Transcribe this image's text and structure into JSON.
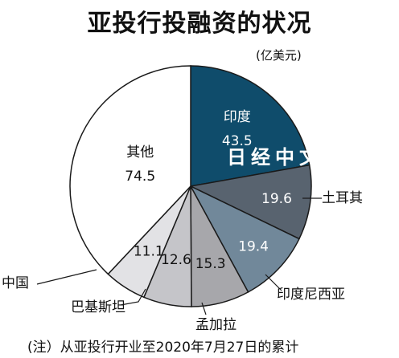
{
  "title": "亚投行投融资的状况",
  "watermark": "日经中文网",
  "note": "(注）从亚投行开业至2020年7月27日的累计",
  "chart_data": {
    "type": "pie",
    "unit": "(亿美元)",
    "slices": [
      {
        "label": "印度",
        "value": 43.5,
        "color": "#0f4c6b",
        "text_color": "#ffffff"
      },
      {
        "label": "土耳其",
        "value": 19.6,
        "color": "#58636f",
        "text_color": "#ffffff"
      },
      {
        "label": "印度尼西亚",
        "value": 19.4,
        "color": "#71889a",
        "text_color": "#ffffff"
      },
      {
        "label": "孟加拉",
        "value": 15.3,
        "color": "#a7a7ab",
        "text_color": "#111111"
      },
      {
        "label": "巴基斯坦",
        "value": 12.6,
        "color": "#c5c5c9",
        "text_color": "#111111"
      },
      {
        "label": "中国",
        "value": 11.1,
        "color": "#e2e2e5",
        "text_color": "#111111"
      },
      {
        "label": "其他",
        "value": 74.5,
        "color": "#ffffff",
        "text_color": "#111111"
      }
    ]
  }
}
